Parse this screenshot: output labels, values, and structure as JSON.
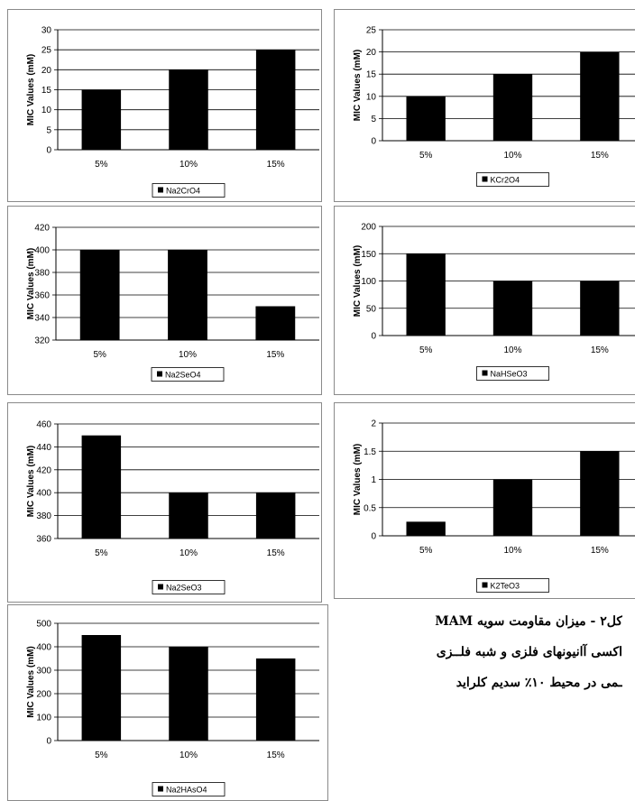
{
  "chart_data": [
    {
      "type": "bar",
      "categories": [
        "5%",
        "10%",
        "15%"
      ],
      "values": [
        15,
        20,
        25
      ],
      "ylabel": "MIC Values (mM)",
      "ylim": [
        0,
        30
      ],
      "yticks": [
        0,
        5,
        10,
        15,
        20,
        25,
        30
      ],
      "legend": "Na2CrO4",
      "legend_position": "bottom",
      "grid": true,
      "bar_color": "#000000"
    },
    {
      "type": "bar",
      "categories": [
        "5%",
        "10%",
        "15%"
      ],
      "values": [
        10,
        15,
        20
      ],
      "ylabel": "MIC Values (mM)",
      "ylim": [
        0,
        25
      ],
      "yticks": [
        0,
        5,
        10,
        15,
        20,
        25
      ],
      "legend": "KCr2O4",
      "legend_position": "bottom",
      "grid": true,
      "bar_color": "#000000"
    },
    {
      "type": "bar",
      "categories": [
        "5%",
        "10%",
        "15%"
      ],
      "values": [
        400,
        400,
        350
      ],
      "ylabel": "MIC Values (mM)",
      "ylim": [
        320,
        420
      ],
      "yticks": [
        320,
        340,
        360,
        380,
        400,
        420
      ],
      "legend": "Na2SeO4",
      "legend_position": "bottom",
      "grid": true,
      "bar_color": "#000000"
    },
    {
      "type": "bar",
      "categories": [
        "5%",
        "10%",
        "15%"
      ],
      "values": [
        150,
        100,
        100
      ],
      "ylabel": "MIC Values (mM)",
      "ylim": [
        0,
        200
      ],
      "yticks": [
        0,
        50,
        100,
        150,
        200
      ],
      "legend": "NaHSeO3",
      "legend_position": "bottom",
      "grid": true,
      "bar_color": "#000000"
    },
    {
      "type": "bar",
      "categories": [
        "5%",
        "10%",
        "15%"
      ],
      "values": [
        450,
        400,
        400
      ],
      "ylabel": "MIC Values (mM)",
      "ylim": [
        360,
        460
      ],
      "yticks": [
        360,
        380,
        400,
        420,
        440,
        460
      ],
      "legend": "Na2SeO3",
      "legend_position": "bottom",
      "grid": true,
      "bar_color": "#000000"
    },
    {
      "type": "bar",
      "categories": [
        "5%",
        "10%",
        "15%"
      ],
      "values": [
        0.25,
        1,
        1.5
      ],
      "ylabel": "MIC Values (mM)",
      "ylim": [
        0,
        2
      ],
      "yticks": [
        0,
        0.5,
        1,
        1.5,
        2
      ],
      "legend": "K2TeO3",
      "legend_position": "bottom",
      "grid": true,
      "bar_color": "#000000"
    },
    {
      "type": "bar",
      "categories": [
        "5%",
        "10%",
        "15%"
      ],
      "values": [
        450,
        400,
        350
      ],
      "ylabel": "MIC Values (mM)",
      "ylim": [
        0,
        500
      ],
      "yticks": [
        0,
        100,
        200,
        300,
        400,
        500
      ],
      "legend": "Na2HAsO4",
      "legend_position": "bottom",
      "grid": true,
      "bar_color": "#000000"
    }
  ],
  "caption": {
    "line1": "کل۲ - میزان مقاومت سویه MAM",
    "line2": "اکسی آانیونهای فلزی و شبه فلــزی",
    "line3": "ـمی در محیط ۱۰٪ سدیم کلراید"
  }
}
